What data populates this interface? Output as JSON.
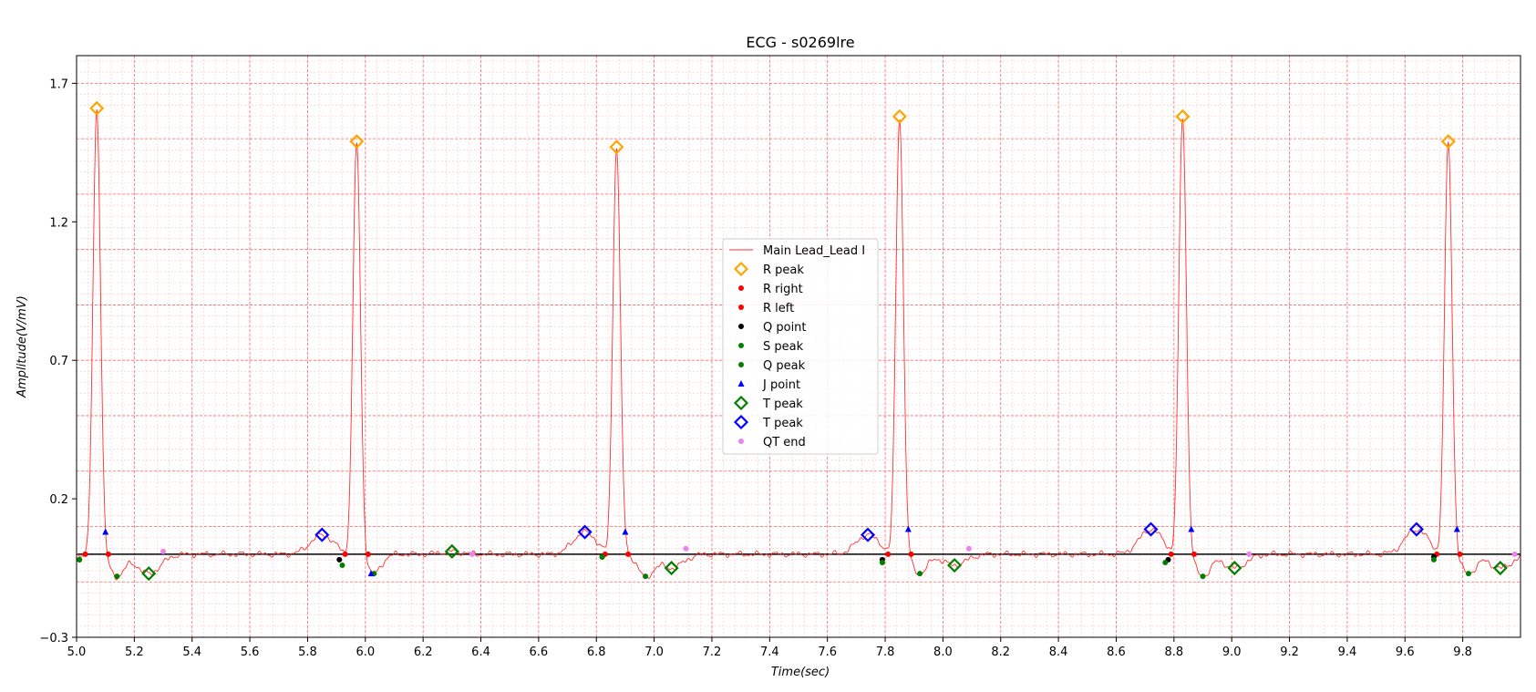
{
  "chart_data": {
    "type": "line",
    "title": "ECG - s0269lre",
    "xlabel": "Time(sec)",
    "ylabel": "Amplitude(V/mV)",
    "xlim": [
      5.0,
      10.0
    ],
    "ylim": [
      -0.3,
      1.8
    ],
    "xticks": [
      "5.0",
      "5.2",
      "5.4",
      "5.6",
      "5.8",
      "6.0",
      "6.2",
      "6.4",
      "6.6",
      "6.8",
      "7.0",
      "7.2",
      "7.4",
      "7.6",
      "7.8",
      "8.0",
      "8.2",
      "8.4",
      "8.6",
      "8.8",
      "9.0",
      "9.2",
      "9.4",
      "9.6",
      "9.8"
    ],
    "yticks": [
      "1.7",
      "1.2",
      "0.7",
      "0.2",
      "−0.3"
    ],
    "grid": true,
    "baseline": 0.0,
    "legend_position": "center",
    "colors": {
      "signal": "#ff3030",
      "r_peak": "#ffa500",
      "r_right": "#ff0000",
      "r_left": "#ff0000",
      "q_point": "#000000",
      "s_peak": "#008000",
      "q_peak": "#008000",
      "j_point": "#0000ff",
      "t_peak_green": "#008000",
      "t_peak_blue": "#0000ff",
      "qt_end": "#ee82ee",
      "grid_major": "#ff6b6b",
      "grid_minor": "#ffc8c8",
      "baseline": "#000000"
    },
    "series": [
      {
        "name": "Main Lead_Lead I",
        "marker": "line",
        "color": "#ff3030"
      },
      {
        "name": "R peak",
        "marker": "diamond",
        "color": "#ffa500",
        "points": [
          [
            5.07,
            1.61
          ],
          [
            5.97,
            1.49
          ],
          [
            6.87,
            1.47
          ],
          [
            7.85,
            1.58
          ],
          [
            8.83,
            1.58
          ],
          [
            9.75,
            1.49
          ]
        ]
      },
      {
        "name": "R right",
        "marker": "dot",
        "color": "#ff0000",
        "points": [
          [
            5.11,
            0.0
          ],
          [
            6.01,
            0.0
          ],
          [
            6.91,
            0.0
          ],
          [
            7.89,
            0.0
          ],
          [
            8.87,
            0.0
          ],
          [
            9.79,
            0.0
          ]
        ]
      },
      {
        "name": "R left",
        "marker": "dot",
        "color": "#ff0000",
        "points": [
          [
            5.03,
            0.0
          ],
          [
            5.93,
            0.0
          ],
          [
            6.83,
            0.0
          ],
          [
            7.81,
            0.0
          ],
          [
            8.79,
            0.0
          ],
          [
            9.71,
            0.0
          ]
        ]
      },
      {
        "name": "Q point",
        "marker": "dot",
        "color": "#000000",
        "points": [
          [
            5.01,
            -0.02
          ],
          [
            5.91,
            -0.02
          ],
          [
            6.82,
            -0.01
          ],
          [
            7.79,
            -0.02
          ],
          [
            8.78,
            -0.02
          ],
          [
            9.7,
            -0.01
          ]
        ]
      },
      {
        "name": "S peak",
        "marker": "dot",
        "color": "#008000",
        "points": [
          [
            5.14,
            -0.08
          ],
          [
            6.03,
            -0.07
          ],
          [
            6.97,
            -0.08
          ],
          [
            7.92,
            -0.07
          ],
          [
            8.9,
            -0.08
          ],
          [
            9.82,
            -0.07
          ]
        ]
      },
      {
        "name": "Q peak",
        "marker": "dot",
        "color": "#008000",
        "points": [
          [
            5.01,
            -0.02
          ],
          [
            5.92,
            -0.04
          ],
          [
            6.82,
            -0.01
          ],
          [
            7.79,
            -0.03
          ],
          [
            8.77,
            -0.03
          ],
          [
            9.7,
            -0.02
          ]
        ]
      },
      {
        "name": "J point",
        "marker": "triangle",
        "color": "#0000ff",
        "points": [
          [
            5.1,
            0.08
          ],
          [
            6.02,
            -0.07
          ],
          [
            6.9,
            0.08
          ],
          [
            7.88,
            0.09
          ],
          [
            8.86,
            0.09
          ],
          [
            9.78,
            0.09
          ]
        ]
      },
      {
        "name": "T peak",
        "marker": "diamond-open",
        "color": "#008000",
        "points": [
          [
            5.25,
            -0.07
          ],
          [
            6.3,
            0.01
          ],
          [
            7.06,
            -0.05
          ],
          [
            8.04,
            -0.04
          ],
          [
            9.01,
            -0.05
          ],
          [
            9.93,
            -0.05
          ]
        ]
      },
      {
        "name": "T peak",
        "marker": "diamond-open",
        "color": "#0000ff",
        "points": [
          [
            5.85,
            0.07
          ],
          [
            6.76,
            0.08
          ],
          [
            7.74,
            0.07
          ],
          [
            8.72,
            0.09
          ],
          [
            9.64,
            0.09
          ]
        ]
      },
      {
        "name": "QT end",
        "marker": "dot",
        "color": "#ee82ee",
        "points": [
          [
            5.3,
            0.01
          ],
          [
            6.37,
            0.0
          ],
          [
            7.11,
            0.02
          ],
          [
            8.09,
            0.02
          ],
          [
            9.06,
            0.0
          ],
          [
            9.98,
            0.0
          ]
        ]
      }
    ]
  }
}
